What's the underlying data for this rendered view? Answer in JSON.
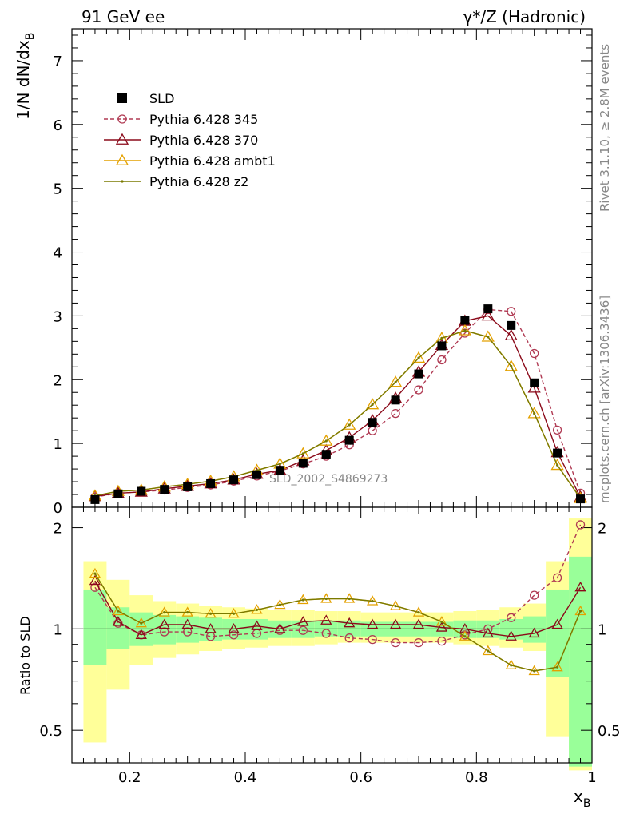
{
  "header": {
    "left_title": "91 GeV ee",
    "right_title": "γ*/Z (Hadronic)"
  },
  "side_text": {
    "rivet": "Rivet 3.1.10, ≥ 2.8M events",
    "mcplots": "mcplots.cern.ch [arXiv:1306.3436]"
  },
  "watermark": "SLD_2002_S4869273",
  "axes": {
    "top_ylabel": "1/N dN/dx",
    "top_ylabel_sub": "B",
    "bottom_ylabel": "Ratio to SLD",
    "xlabel": "x",
    "xlabel_sub": "B",
    "x_ticks": [
      "0.2",
      "0.4",
      "0.6",
      "0.8",
      "1"
    ],
    "top_y_ticks": [
      "0",
      "1",
      "2",
      "3",
      "4",
      "5",
      "6",
      "7"
    ],
    "bottom_y_ticks": [
      "0.5",
      "1",
      "2"
    ]
  },
  "chart_data": [
    {
      "type": "scatter",
      "panel": "main",
      "xlim": [
        0.1,
        1.0
      ],
      "ylim": [
        0,
        7.5
      ],
      "x": [
        0.14,
        0.18,
        0.22,
        0.26,
        0.3,
        0.34,
        0.38,
        0.42,
        0.46,
        0.5,
        0.54,
        0.58,
        0.62,
        0.66,
        0.7,
        0.74,
        0.78,
        0.82,
        0.86,
        0.9,
        0.94,
        0.98
      ],
      "legend_placement": "top-left",
      "series": [
        {
          "name": "SLD",
          "style": "data",
          "color": "#000000",
          "values": [
            0.12,
            0.21,
            0.25,
            0.28,
            0.32,
            0.37,
            0.43,
            0.51,
            0.58,
            0.69,
            0.83,
            1.05,
            1.33,
            1.68,
            2.09,
            2.53,
            2.93,
            3.11,
            2.85,
            1.95,
            0.85,
            0.13
          ]
        },
        {
          "name": "Pythia 6.428 345",
          "style": "circle-dashed",
          "color": "#b03a53",
          "values": [
            0.16,
            0.22,
            0.24,
            0.27,
            0.31,
            0.35,
            0.41,
            0.49,
            0.57,
            0.68,
            0.8,
            0.98,
            1.2,
            1.47,
            1.84,
            2.31,
            2.73,
            3.1,
            3.07,
            2.41,
            1.21,
            0.22
          ]
        },
        {
          "name": "Pythia 6.428 370",
          "style": "triangle-solid",
          "color": "#8b0a1a",
          "values": [
            0.17,
            0.22,
            0.24,
            0.29,
            0.33,
            0.37,
            0.43,
            0.52,
            0.58,
            0.73,
            0.89,
            1.09,
            1.36,
            1.71,
            2.12,
            2.54,
            2.92,
            3.0,
            2.69,
            1.87,
            0.86,
            0.16
          ]
        },
        {
          "name": "Pythia 6.428 ambt1",
          "style": "triangle-solid",
          "color": "#e4a100",
          "values": [
            0.18,
            0.25,
            0.27,
            0.32,
            0.36,
            0.41,
            0.48,
            0.58,
            0.68,
            0.84,
            1.04,
            1.29,
            1.61,
            1.96,
            2.34,
            2.65,
            2.77,
            2.67,
            2.21,
            1.47,
            0.66,
            0.14
          ]
        },
        {
          "name": "Pythia 6.428 z2",
          "style": "dot-solid",
          "color": "#7a7a00",
          "values": [
            0.18,
            0.25,
            0.27,
            0.32,
            0.36,
            0.41,
            0.48,
            0.58,
            0.68,
            0.84,
            1.04,
            1.29,
            1.61,
            1.96,
            2.34,
            2.65,
            2.77,
            2.67,
            2.21,
            1.47,
            0.66,
            0.14
          ]
        }
      ]
    },
    {
      "type": "line",
      "panel": "ratio",
      "xlim": [
        0.1,
        1.0
      ],
      "ylim": [
        0.4,
        2.3
      ],
      "y_scale": "log",
      "x": [
        0.14,
        0.18,
        0.22,
        0.26,
        0.3,
        0.34,
        0.38,
        0.42,
        0.46,
        0.5,
        0.54,
        0.58,
        0.62,
        0.66,
        0.7,
        0.74,
        0.78,
        0.82,
        0.86,
        0.9,
        0.94,
        0.98
      ],
      "bins": [
        0.12,
        0.16,
        0.2,
        0.24,
        0.28,
        0.32,
        0.36,
        0.4,
        0.44,
        0.48,
        0.52,
        0.56,
        0.6,
        0.64,
        0.68,
        0.72,
        0.76,
        0.8,
        0.84,
        0.88,
        0.92,
        0.96,
        1.0
      ],
      "bands": {
        "inner_color": "#99ff99",
        "outer_color": "#ffff99",
        "inner_low": [
          0.78,
          0.87,
          0.89,
          0.9,
          0.91,
          0.92,
          0.93,
          0.93,
          0.94,
          0.94,
          0.95,
          0.95,
          0.95,
          0.95,
          0.95,
          0.95,
          0.94,
          0.94,
          0.93,
          0.91,
          0.72,
          0.39
        ],
        "inner_high": [
          1.31,
          1.16,
          1.12,
          1.1,
          1.09,
          1.08,
          1.07,
          1.07,
          1.06,
          1.06,
          1.06,
          1.06,
          1.05,
          1.05,
          1.05,
          1.05,
          1.06,
          1.06,
          1.07,
          1.09,
          1.31,
          1.64
        ],
        "outer_low": [
          0.46,
          0.66,
          0.78,
          0.82,
          0.84,
          0.86,
          0.87,
          0.88,
          0.89,
          0.89,
          0.9,
          0.91,
          0.91,
          0.91,
          0.91,
          0.91,
          0.9,
          0.89,
          0.88,
          0.86,
          0.48,
          0.38
        ],
        "outer_high": [
          1.59,
          1.4,
          1.26,
          1.21,
          1.19,
          1.17,
          1.16,
          1.15,
          1.14,
          1.14,
          1.13,
          1.13,
          1.12,
          1.12,
          1.12,
          1.12,
          1.13,
          1.14,
          1.16,
          1.19,
          1.59,
          2.13
        ]
      },
      "series": [
        {
          "name": "Pythia 6.428 345",
          "style": "circle-dashed",
          "color": "#b03a53",
          "values": [
            1.33,
            1.04,
            0.96,
            0.98,
            0.98,
            0.95,
            0.96,
            0.97,
            0.99,
            0.99,
            0.97,
            0.94,
            0.93,
            0.91,
            0.91,
            0.92,
            0.96,
            1.0,
            1.08,
            1.26,
            1.42,
            2.04
          ]
        },
        {
          "name": "Pythia 6.428 370",
          "style": "triangle-solid",
          "color": "#8b0a1a",
          "values": [
            1.39,
            1.05,
            0.96,
            1.03,
            1.03,
            1.0,
            1.0,
            1.02,
            1.0,
            1.05,
            1.06,
            1.04,
            1.03,
            1.03,
            1.03,
            1.01,
            1.0,
            0.97,
            0.95,
            0.97,
            1.03,
            1.33
          ]
        },
        {
          "name": "Pythia 6.428 ambt1",
          "style": "triangle-solid",
          "color": "#e4a100",
          "values": [
            1.46,
            1.13,
            1.04,
            1.12,
            1.12,
            1.11,
            1.11,
            1.14,
            1.18,
            1.22,
            1.23,
            1.23,
            1.21,
            1.17,
            1.12,
            1.05,
            0.95,
            0.86,
            0.78,
            0.75,
            0.77,
            1.13
          ]
        },
        {
          "name": "Pythia 6.428 z2",
          "style": "dot-solid",
          "color": "#7a7a00",
          "values": [
            1.46,
            1.13,
            1.04,
            1.12,
            1.12,
            1.11,
            1.11,
            1.14,
            1.18,
            1.22,
            1.23,
            1.23,
            1.21,
            1.17,
            1.12,
            1.05,
            0.95,
            0.86,
            0.78,
            0.75,
            0.77,
            1.13
          ]
        }
      ]
    }
  ]
}
